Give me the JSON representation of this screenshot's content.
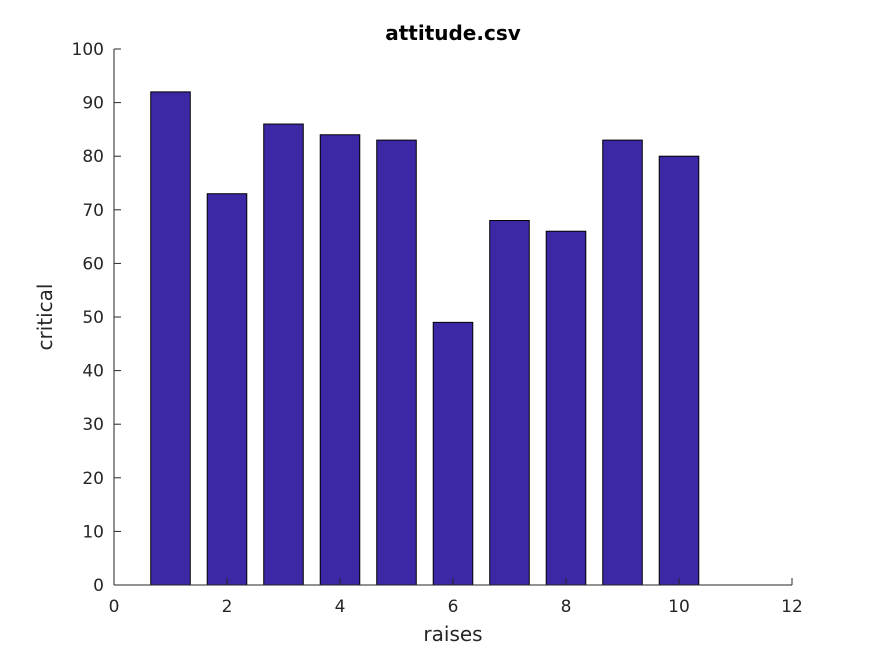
{
  "chart_data": {
    "type": "bar",
    "title": "attitude.csv",
    "xlabel": "raises",
    "ylabel": "critical",
    "x": [
      1,
      2,
      3,
      4,
      5,
      6,
      7,
      8,
      9,
      10
    ],
    "values": [
      92,
      73,
      86,
      84,
      83,
      49,
      68,
      66,
      83,
      80
    ],
    "xlim": [
      0,
      12
    ],
    "ylim": [
      0,
      100
    ],
    "xticks": [
      0,
      2,
      4,
      6,
      8,
      10,
      12
    ],
    "yticks": [
      0,
      10,
      20,
      30,
      40,
      50,
      60,
      70,
      80,
      90,
      100
    ],
    "bar_color": "#3c28a5",
    "grid": false,
    "legend": "none"
  }
}
